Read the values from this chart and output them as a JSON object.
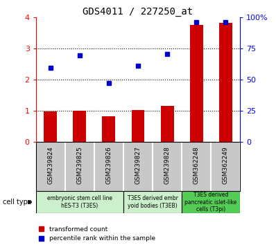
{
  "title": "GDS4011 / 227250_at",
  "samples": [
    "GSM239824",
    "GSM239825",
    "GSM239826",
    "GSM239827",
    "GSM239828",
    "GSM362248",
    "GSM362249"
  ],
  "bar_values": [
    0.98,
    1.0,
    0.82,
    1.02,
    1.15,
    3.75,
    3.82
  ],
  "dot_values": [
    2.38,
    2.78,
    1.88,
    2.45,
    2.82,
    3.85,
    3.85
  ],
  "ylim_left": [
    0,
    4
  ],
  "ylim_right": [
    0,
    100
  ],
  "yticks_left": [
    0,
    1,
    2,
    3,
    4
  ],
  "yticks_right": [
    0,
    25,
    50,
    75,
    100
  ],
  "ytick_labels_right": [
    "0",
    "25",
    "50",
    "75",
    "100%"
  ],
  "bar_color": "#cc0000",
  "dot_color": "#0000cc",
  "groups": [
    {
      "label": "embryonic stem cell line\nhES-T3 (T3ES)",
      "indices": [
        0,
        1,
        2
      ],
      "color": "#ccf0cc"
    },
    {
      "label": "T3ES derived embr\nyoid bodies (T3EB)",
      "indices": [
        3,
        4
      ],
      "color": "#ccf0cc"
    },
    {
      "label": "T3ES derived\npancreatic islet-like\ncells (T3pi)",
      "indices": [
        5,
        6
      ],
      "color": "#55cc55"
    }
  ],
  "legend_bar_label": "transformed count",
  "legend_dot_label": "percentile rank within the sample",
  "cell_type_label": "cell type",
  "tick_bg_color": "#c8c8c8",
  "bar_width": 0.45
}
